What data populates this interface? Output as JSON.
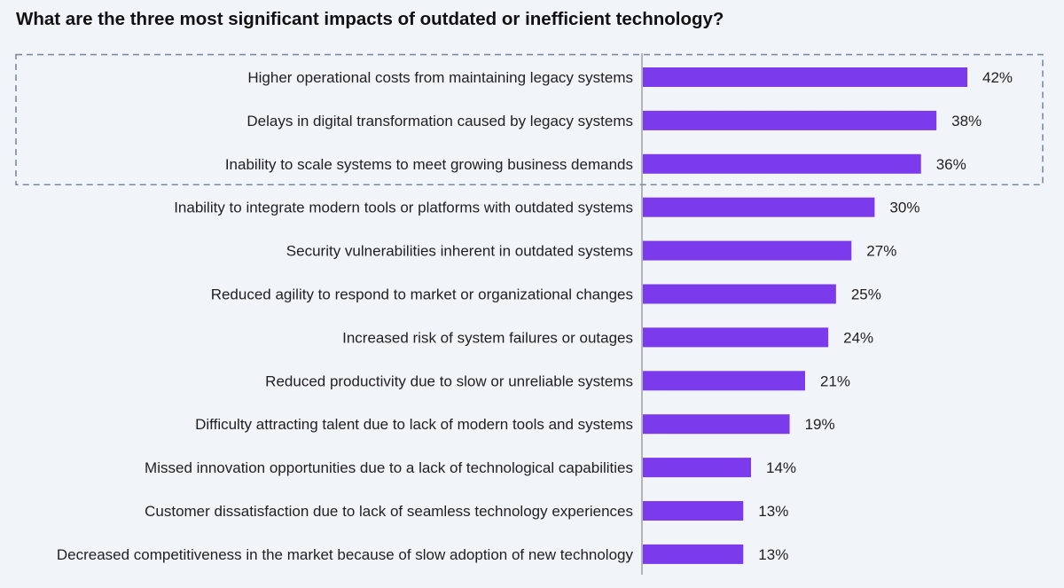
{
  "chart_data": {
    "type": "bar",
    "orientation": "horizontal",
    "title": "What are the three most significant impacts of outdated or inefficient technology?",
    "categories": [
      "Higher operational costs from maintaining legacy systems",
      "Delays in digital transformation caused by legacy systems",
      "Inability to scale systems to meet growing business demands",
      "Inability to integrate modern tools or platforms with outdated systems",
      "Security vulnerabilities inherent in outdated systems",
      "Reduced agility to respond to market or organizational changes",
      "Increased risk of system failures or outages",
      "Reduced productivity due to slow or unreliable systems",
      "Difficulty attracting talent due to lack of modern tools and systems",
      "Missed innovation opportunities due to a lack of technological capabilities",
      "Customer dissatisfaction due to lack of seamless technology experiences",
      "Decreased competitiveness in the market because of slow adoption of new technology"
    ],
    "values": [
      42,
      38,
      36,
      30,
      27,
      25,
      24,
      21,
      19,
      14,
      13,
      13
    ],
    "value_suffix": "%",
    "highlighted_top_n": 3,
    "bar_color": "#7c3aed",
    "highlight_border_color": "#7a8aa3",
    "background_color": "#f1f4f8",
    "grid": false,
    "legend": "none"
  }
}
